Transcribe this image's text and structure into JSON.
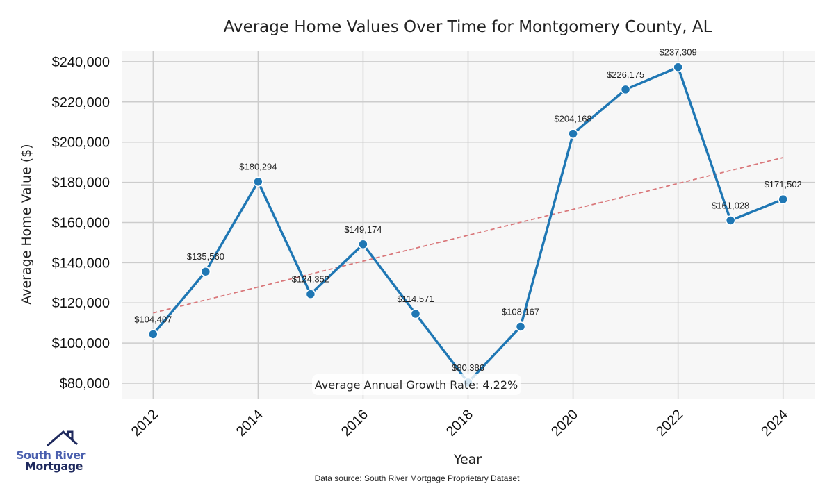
{
  "chart_data": {
    "type": "line",
    "title": "Average Home Values Over Time for Montgomery County, AL",
    "xlabel": "Year",
    "ylabel": "Average Home Value ($)",
    "x": [
      2012,
      2013,
      2014,
      2015,
      2016,
      2017,
      2018,
      2019,
      2020,
      2021,
      2022,
      2023,
      2024
    ],
    "values": [
      104407,
      135560,
      180294,
      124352,
      149174,
      114571,
      80386,
      108167,
      204168,
      226175,
      237309,
      161028,
      171502
    ],
    "data_labels": [
      "$104,407",
      "$135,560",
      "$180,294",
      "$124,352",
      "$149,174",
      "$114,571",
      "$80,386",
      "$108,167",
      "$204,168",
      "$226,175",
      "$237,309",
      "$161,028",
      "$171,502"
    ],
    "x_ticks": [
      "2012",
      "2014",
      "2016",
      "2018",
      "2020",
      "2022",
      "2024"
    ],
    "y_ticks": [
      80000,
      100000,
      120000,
      140000,
      160000,
      180000,
      200000,
      220000,
      240000
    ],
    "y_tick_labels": [
      "$80,000",
      "$100,000",
      "$120,000",
      "$140,000",
      "$160,000",
      "$180,000",
      "$200,000",
      "$220,000",
      "$240,000"
    ],
    "ylim": [
      72400,
      245500
    ],
    "xlim": [
      2011.4,
      2024.6
    ],
    "trend": {
      "start": [
        2012,
        115000
      ],
      "end": [
        2024,
        192300
      ]
    },
    "annotation": "Average Annual Growth Rate: 4.22%",
    "grid": true,
    "colors": {
      "line": "#1f77b4",
      "trend": "#d9777a",
      "plot_bg": "#f7f7f7",
      "grid": "#cccccc"
    }
  },
  "logo": {
    "line1": "South River",
    "line2": "Mortgage"
  },
  "source": "Data source: South River Mortgage Proprietary Dataset"
}
